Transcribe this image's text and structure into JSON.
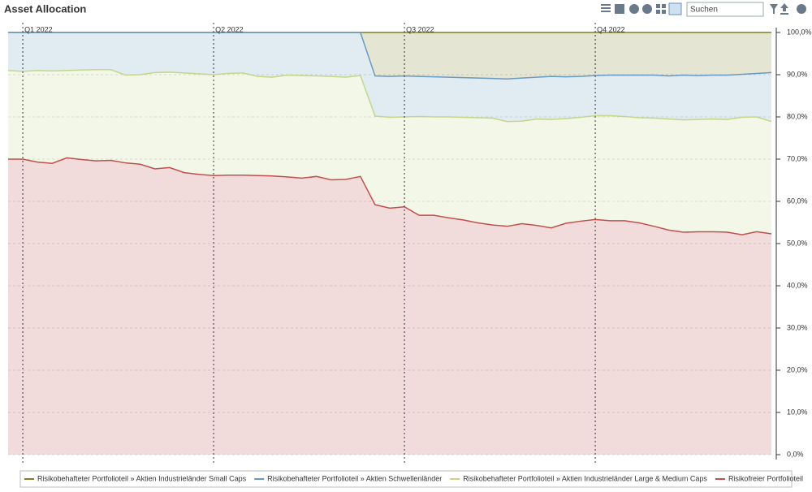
{
  "chart_data": {
    "type": "stacked_area",
    "title": "Asset Allocation",
    "categories": [
      null,
      "Q1 2022",
      null,
      null,
      null,
      null,
      null,
      null,
      null,
      null,
      null,
      null,
      null,
      null,
      "Q2 2022",
      null,
      null,
      null,
      null,
      null,
      null,
      null,
      null,
      null,
      null,
      null,
      null,
      "Q3 2022",
      null,
      null,
      null,
      null,
      null,
      null,
      null,
      null,
      null,
      null,
      null,
      null,
      "Q4 2022",
      null,
      null,
      null,
      null,
      null,
      null,
      null,
      null,
      null,
      null,
      null,
      null
    ],
    "series": [
      {
        "name": "Risikobehafteter Portfolioteil » Aktien Industrieländer Small Caps",
        "color": "#7f7f2a",
        "values": [
          0,
          0,
          0,
          0,
          0,
          0,
          0,
          0,
          0,
          0,
          0,
          0,
          0,
          0,
          0,
          0,
          0,
          0,
          0,
          0,
          0,
          0,
          0,
          0,
          0,
          10.3,
          10.4,
          10.3,
          10.4,
          10.5,
          10.6,
          10.7,
          10.8,
          10.9,
          11.0,
          10.8,
          10.6,
          10.4,
          10.5,
          10.4,
          10.2,
          10.1,
          10.1,
          10.1,
          10.1,
          10.3,
          10.1,
          10.2,
          10.1,
          10.1,
          9.9,
          9.7,
          9.5
        ]
      },
      {
        "name": "Risikobehafteter Portfolioteil » Aktien Schwellenländer",
        "color": "#6a99c0",
        "values": [
          9.0,
          9.2,
          9.0,
          9.1,
          9.0,
          8.9,
          8.8,
          8.8,
          10.1,
          10.0,
          9.5,
          9.4,
          9.6,
          9.8,
          10.0,
          9.7,
          9.6,
          10.4,
          10.6,
          10.1,
          10.2,
          10.3,
          10.4,
          10.6,
          10.2,
          9.5,
          9.7,
          9.7,
          9.5,
          9.5,
          9.4,
          9.4,
          9.4,
          9.4,
          10.1,
          10.2,
          9.9,
          10.2,
          9.9,
          9.7,
          9.5,
          9.6,
          9.8,
          10.1,
          10.2,
          10.2,
          10.6,
          10.4,
          10.4,
          10.5,
          10.2,
          10.3,
          11.6
        ]
      },
      {
        "name": "Risikobehafteter Portfolioteil » Aktien Industrieländer Large & Medium Caps",
        "color": "#c3d68a",
        "values": [
          21.0,
          20.8,
          21.7,
          21.9,
          20.7,
          21.2,
          21.6,
          21.5,
          20.8,
          21.2,
          22.8,
          22.6,
          23.6,
          23.8,
          23.9,
          24.1,
          24.2,
          23.5,
          23.4,
          24.1,
          24.3,
          23.8,
          24.5,
          24.2,
          23.9,
          21.0,
          21.5,
          21.3,
          23.4,
          23.3,
          23.9,
          24.3,
          24.9,
          25.3,
          24.8,
          24.3,
          25.2,
          25.7,
          24.8,
          24.6,
          24.6,
          24.9,
          24.7,
          24.9,
          25.6,
          26.3,
          26.6,
          26.6,
          26.7,
          26.7,
          27.8,
          27.2,
          26.6
        ]
      },
      {
        "name": "Risikofreier Portfolioteil",
        "color": "#c0504d",
        "values": [
          70.0,
          70.0,
          69.3,
          69.0,
          70.3,
          69.9,
          69.6,
          69.7,
          69.1,
          68.8,
          67.7,
          68.0,
          66.8,
          66.4,
          66.1,
          66.2,
          66.2,
          66.1,
          66.0,
          65.8,
          65.5,
          65.9,
          65.1,
          65.2,
          65.9,
          59.2,
          58.4,
          58.7,
          56.7,
          56.7,
          56.1,
          55.6,
          54.9,
          54.4,
          54.1,
          54.7,
          54.3,
          53.7,
          54.8,
          55.3,
          55.7,
          55.4,
          55.4,
          54.9,
          54.1,
          53.2,
          52.7,
          52.8,
          52.8,
          52.7,
          52.1,
          52.8,
          52.3
        ]
      }
    ],
    "ylim": [
      0,
      100
    ],
    "yticks": [
      {
        "value": 0,
        "label": "0,0%"
      },
      {
        "value": 10,
        "label": "10,0%"
      },
      {
        "value": 20,
        "label": "20,0%"
      },
      {
        "value": 30,
        "label": "30,0%"
      },
      {
        "value": 40,
        "label": "40,0%"
      },
      {
        "value": 50,
        "label": "50,0%"
      },
      {
        "value": 60,
        "label": "60,0%"
      },
      {
        "value": 70,
        "label": "70,0%"
      },
      {
        "value": 80,
        "label": "80,0%"
      },
      {
        "value": 90,
        "label": "90,0%"
      },
      {
        "value": 100,
        "label": "100,0%"
      }
    ],
    "grid": true,
    "legend": "bottom"
  },
  "toolbar": {
    "search_placeholder": "Suchen"
  }
}
